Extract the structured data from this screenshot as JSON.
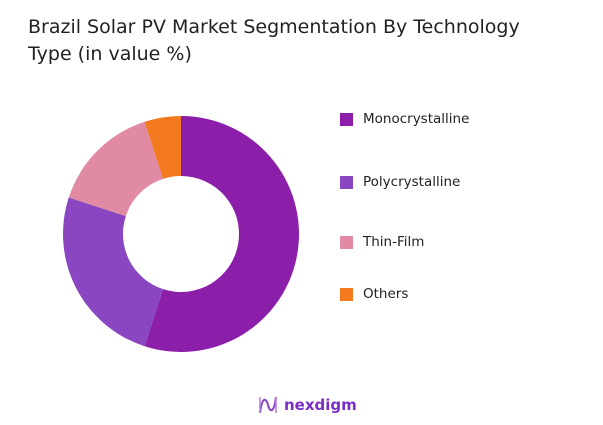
{
  "chart_data": {
    "type": "pie",
    "donut": true,
    "title": "Brazil Solar PV Market Segmentation By Technology Type (in value %)",
    "categories": [
      "Monocrystalline",
      "Polycrystalline",
      "Thin-Film",
      "Others"
    ],
    "values": [
      55,
      25,
      15,
      5
    ],
    "colors": [
      "#8B1FA9",
      "#8A45C0",
      "#E08BA3",
      "#F47A20"
    ],
    "legend_position": "right"
  },
  "brand": {
    "logo_text": "nexdigm",
    "color": "#7a2fc4"
  }
}
